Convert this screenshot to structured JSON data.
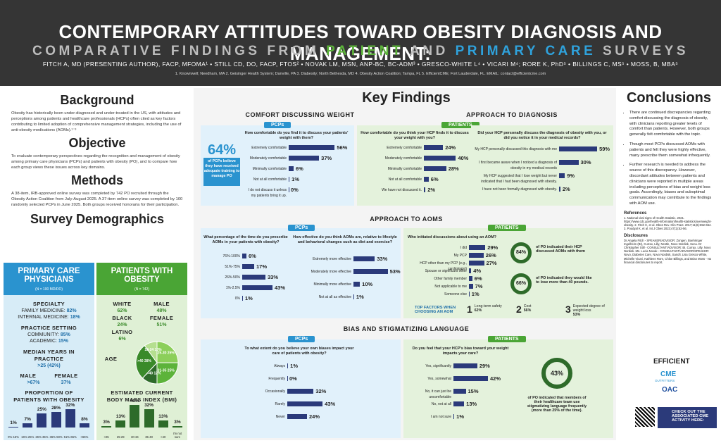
{
  "header": {
    "title": "CONTEMPORARY ATTITUDES TOWARD OBESITY DIAGNOSIS AND MANAGEMENT:",
    "sub_a": "COMPARATIVE FINDINGS FROM ",
    "sub_patient": "PATIENT",
    "sub_and": " AND ",
    "sub_pcs": "PRIMARY CARE",
    "sub_end": " SURVEYS",
    "authors": "FITCH A, MD (PRESENTING AUTHOR), FACP, MFOMA¹ • STILL CD, DO, FACP, FTOS² • NOVAK LM, MSN, ANP-BC, BC-ADM³ • GRESCO-WHITE L⁴ • VICARI M⁴; RORE K, PhD⁵ • BILLINGS C, MS⁵ • MOSS, B, MBA⁵",
    "affil": "1. Knownwell; Needham, MA 2. Geisinger Health System; Danville, PA 3. Diabesity; North Bethesda, MD 4. Obesity Action Coalition; Tampa, FL 5. EfficientCME; Fort Lauderdale, FL. EMAIL: contact@efficientcme.com"
  },
  "left": {
    "background_h": "Background",
    "background_t": "Obesity has historically been under-diagnosed and under-treated in the US, with attitudes and perceptions among patients and healthcare professionals (HCPs) often cited as key factors contributing to limited adoption of comprehensive management strategies, including the use of anti-obesity medications (AOMs).¹⁻³",
    "objective_h": "Objective",
    "objective_t": "To evaluate contemporary perspectives regarding the recognition and management of obesity among primary care physicians (PCPs) and patients with obesity (PO), and to compare how each group views these issues across key domains.",
    "methods_h": "Methods",
    "methods_t": "A 38-item, IRB-approved online survey was completed by 742 PO recruited through the Obesity Action Coalition from July-August 2025. A 37-item online survey was completed by 100 randomly selected PCPs in June 2025. Both groups received honoraria for their participation.",
    "demo_h": "Survey Demographics"
  },
  "pcp_demo": {
    "title": "PRIMARY CARE PHYSICIANS",
    "n": "(N = 100 MD/DO)",
    "specialty_h": "SPECIALTY",
    "fm": "FAMILY MEDICINE: ",
    "fm_v": "82%",
    "im": "INTERNAL MEDICINE: ",
    "im_v": "18%",
    "setting_h": "PRACTICE SETTING",
    "comm": "COMMUNITY: ",
    "comm_v": "85%",
    "acad": "ACADEMIC: ",
    "acad_v": "15%",
    "years_h": "MEDIAN YEARS IN PRACTICE",
    "years_v": ">25 (42%)",
    "male": "MALE",
    "male_v": ">67%",
    "female": "FEMALE",
    "female_v": "37%",
    "prop_h": "PROPORTION OF PATIENTS WITH OBESITY",
    "prop_vals": [
      "1%",
      "7%",
      "25%",
      "28%",
      "32%",
      "8%"
    ],
    "prop_cats": [
      "0%-15%",
      "16%-25%",
      "26%-35%",
      "36%-50%",
      "51%-65%",
      ">65%"
    ]
  },
  "pat_demo": {
    "title": "PATIENTS WITH OBESITY",
    "n": "(N = 742)",
    "white": "WHITE",
    "white_v": "62%",
    "male": "MALE",
    "male_v": "48%",
    "black": "BLACK",
    "black_v": "24%",
    "female": "FEMALE",
    "female_v": "51%",
    "latino": "LATINO",
    "latino_v": "6%",
    "age": "AGE",
    "age_slices": [
      {
        "l": "25-30",
        "v": "25%"
      },
      {
        "l": "31-35",
        "v": "25%"
      },
      {
        "l": "36-40",
        "v": "12%"
      },
      {
        "l": ">40",
        "v": "28%"
      },
      {
        "l": "18-24",
        "v": "10%"
      }
    ],
    "bmi_h": "ESTIMATED CURRENT BODY MASS INDEX (BMI)",
    "bmi_vals": [
      "3%",
      "13%",
      "40%",
      "32%",
      "13%",
      "3%"
    ],
    "bmi_cats": [
      "<25",
      "25-29",
      "30-34",
      "35-40",
      ">40",
      "I'm not sure"
    ]
  },
  "kf": {
    "title": "Key Findings",
    "comfort_h": "COMFORT DISCUSSING WEIGHT",
    "diag_h": "APPROACH TO DIAGNOSIS",
    "aoms_h": "APPROACH TO AOMS",
    "bias_h": "BIAS AND STIGMATIZING LANGUAGE",
    "pcps": "PCPs",
    "patients": "PATIENTS"
  },
  "comfort": {
    "big": "64%",
    "big_t": "of PCPs believe they have received adequate training to manage PO",
    "pcp_q": "How comfortable do you find it to discuss your patients' weight with them?",
    "pcp_rows": [
      {
        "l": "Extremely comfortable",
        "v": "56%",
        "n": 56
      },
      {
        "l": "Moderately comfortable",
        "v": "37%",
        "n": 37
      },
      {
        "l": "Minimally comfortable",
        "v": "6%",
        "n": 6
      },
      {
        "l": "Not at all comfortable",
        "v": "1%",
        "n": 1
      },
      {
        "l": "I do not discuss it unless my patients bring it up.",
        "v": "0%",
        "n": 0
      }
    ],
    "pat_q": "How comfortable do you think your HCP finds it to discuss your weight with you?",
    "pat_rows": [
      {
        "l": "Extremely comfortable",
        "v": "24%",
        "n": 24
      },
      {
        "l": "Moderately comfortable",
        "v": "40%",
        "n": 40
      },
      {
        "l": "Minimally comfortable",
        "v": "28%",
        "n": 28
      },
      {
        "l": "Not at all comfortable",
        "v": "6%",
        "n": 6
      },
      {
        "l": "We have not discussed it.",
        "v": "2%",
        "n": 2
      }
    ]
  },
  "diag": {
    "q": "Did your HCP personally discuss the diagnosis of obesity with you, or did you notice it in your medical records?",
    "rows": [
      {
        "l": "My HCP personally discussed this diagnosis with me",
        "v": "59%",
        "n": 59
      },
      {
        "l": "I first became aware when I noticed a diagnosis of obesity in my medical records",
        "v": "30%",
        "n": 30
      },
      {
        "l": "My HCP suggested that I lose weight but never indicated that I had been diagnosed with obesity.",
        "v": "9%",
        "n": 9
      },
      {
        "l": "I have not been formally diagnosed with obesity.",
        "v": "2%",
        "n": 2
      }
    ]
  },
  "aoms": {
    "q1": "What percentage of the time do you prescribe AOMs in your patients with obesity?",
    "r1": [
      {
        "l": "76%-100%",
        "v": "6%",
        "n": 6
      },
      {
        "l": "51%-75%",
        "v": "17%",
        "n": 17
      },
      {
        "l": "26%-50%",
        "v": "33%",
        "n": 33
      },
      {
        "l": "1%-2.5%",
        "v": "43%",
        "n": 43
      },
      {
        "l": "0%",
        "v": "1%",
        "n": 1
      }
    ],
    "q2": "How effective do you think AOMs are, relative to lifestyle and behavioral changes such as diet and exercise?",
    "r2": [
      {
        "l": "Extremely more effective",
        "v": "33%",
        "n": 33
      },
      {
        "l": "Moderately more effective",
        "v": "53%",
        "n": 53
      },
      {
        "l": "Minimally more effective",
        "v": "10%",
        "n": 10
      },
      {
        "l": "Not at all as effective",
        "v": "1%",
        "n": 1
      }
    ],
    "q3": "Who initiated discussions about using an AOM?",
    "r3": [
      {
        "l": "I did",
        "v": "29%",
        "n": 29
      },
      {
        "l": "My PCP",
        "v": "26%",
        "n": 26
      },
      {
        "l": "HCP other than my PCP (e.g., cardiologist)",
        "v": "27%",
        "n": 27
      },
      {
        "l": "Spouse or significant other",
        "v": "4%",
        "n": 4
      },
      {
        "l": "Other family member",
        "v": "6%",
        "n": 6
      },
      {
        "l": "Not applicable to me",
        "v": "7%",
        "n": 7
      },
      {
        "l": "Someone else",
        "v": "1%",
        "n": 1
      }
    ],
    "r84": "84%",
    "r84_t": "of PO indicated their HCP discussed AOMs with them",
    "r66": "66%",
    "r66_t": "of PO indicated they would like to lose more than 40 pounds.",
    "tf_h": "TOP FACTORS WHEN CHOOSING AN AOM",
    "tf": [
      {
        "n": "1",
        "l": "Long-term safety",
        "v": "62%"
      },
      {
        "n": "2",
        "l": "Cost",
        "v": "56%"
      },
      {
        "n": "3",
        "l": "Expected degree of weight loss",
        "v": "53%"
      }
    ]
  },
  "bias": {
    "q1": "To what extent do you believe your own biases impact your care of patients with obesity?",
    "r1": [
      {
        "l": "Always",
        "v": "1%",
        "n": 1
      },
      {
        "l": "Frequently",
        "v": "0%",
        "n": 0
      },
      {
        "l": "Occasionally",
        "v": "32%",
        "n": 32
      },
      {
        "l": "Rarely",
        "v": "43%",
        "n": 43
      },
      {
        "l": "Never",
        "v": "24%",
        "n": 24
      }
    ],
    "q2": "Do you feel that your HCP's bias toward your weight impacts your care?",
    "r2": [
      {
        "l": "Yes, significantly",
        "v": "29%",
        "n": 29
      },
      {
        "l": "Yes, somewhat",
        "v": "42%",
        "n": 42
      },
      {
        "l": "No, it can just be uncomfortable",
        "v": "15%",
        "n": 15
      },
      {
        "l": "No, not at all",
        "v": "13%",
        "n": 13
      },
      {
        "l": "I am not sure",
        "v": "1%",
        "n": 1
      }
    ],
    "r43": "43%",
    "r43_t": "of PO indicated that members of their healthcare team use stigmatizing language frequently (more than 25% of the time)."
  },
  "conc": {
    "h": "Conclusions",
    "items": [
      "There are continued discrepancies regarding comfort discussing the diagnosis of obesity, with clinicians reporting greater levels of comfort than patients. However, both groups generally felt comfortable with the topic.",
      "Though most PCPs discussed AOMs with patients and felt they were highly effective, many prescribe them somewhat infrequently.",
      "Further research is needed to address the source of this discrepancy. However, discordant attitudes between patients and clinicians were reported in multiple areas including perceptions of bias and weight loss goals. Accordingly, biases and suboptimal communication may contribute to the findings with AOM use."
    ],
    "refs_h": "References",
    "refs": "1. National vital signs of Health Statistic. 2021. https://www.cdc.gov/health-information/health-statistics/overweight-obesity. 2. Fitch C, et al. Obes Rev. Clin Pract. 2017;11(6):652-664. 3. Poudyal K, et al. Int J Obes 2023;47(1):52-56.",
    "disc_h": "Disclosures",
    "disc": "Dr Angela Fitch - SPEAKER/ADVISOR: Zongen, Boehringer Ingelheim (BI), Currax, Lilly, Nestle, Novo Nordisk, Seca. Dr Christopher Still - CONSULTANT/ADVISOR: BI, Currax, Lilly, Novo Nordisk. Ms. Lucia Novak - CONSULTANT/ADVISOR/SPEAKER: Novo, Diabetes Care, Novo Nordisk, Sanofi. Lisa Gresco-White, Michelle Vicari, Kathleen Rore, Chloe Billings, and Brian Moss - No financial disclosures to report.",
    "logo1": "EFFICIENT",
    "logo2": "CME",
    "logo2s": "OUTFITTERS",
    "logo3": "OAC",
    "cta": "CHECK OUT THE ASSOCIATED CME ACTIVITY HERE:"
  },
  "colors": {
    "bar": "#2b3a7a",
    "blue": "#2a93cf",
    "green": "#4aa535"
  }
}
